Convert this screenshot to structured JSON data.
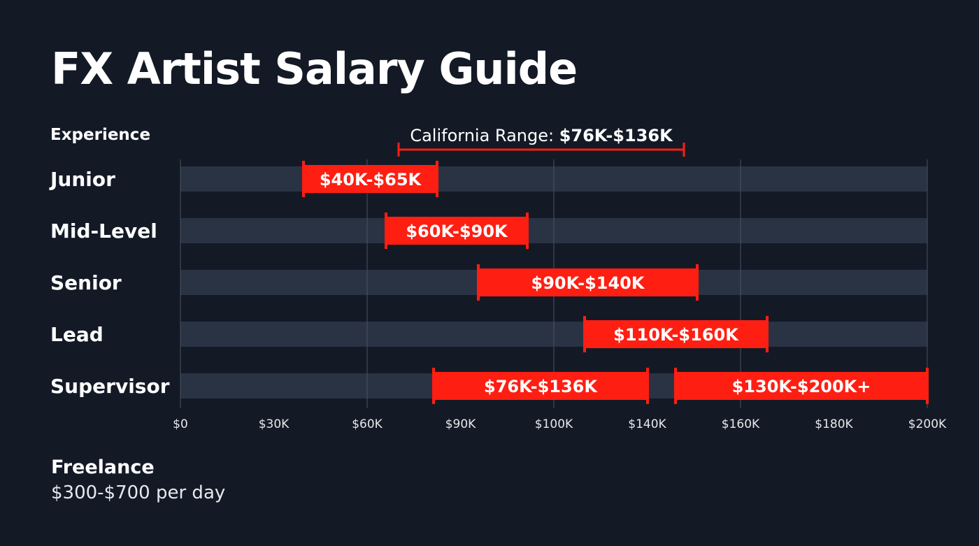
{
  "title": "FX Artist Salary Guide",
  "colors": {
    "background": "#131a26",
    "track": "#2a3344",
    "range_bar": "#ff1e12",
    "gridline": "#4a5262",
    "text": "#ffffff"
  },
  "chart_data": {
    "type": "range-bar",
    "row_header": "Experience",
    "categories": [
      "Junior",
      "Mid-Level",
      "Senior",
      "Lead",
      "Supervisor"
    ],
    "x_ticks": [
      "$0",
      "$30K",
      "$60K",
      "$90K",
      "$100K",
      "$140K",
      "$160K",
      "$180K",
      "$200K"
    ],
    "gridlines_at_ticks": [
      "$0",
      "$60K",
      "$100K",
      "$160K",
      "$200K"
    ],
    "bars": [
      {
        "category": "Junior",
        "label": "$40K-$65K",
        "low": 40000,
        "high": 65000
      },
      {
        "category": "Mid-Level",
        "label": "$60K-$90K",
        "low": 60000,
        "high": 90000
      },
      {
        "category": "Senior",
        "label": "$90K-$140K",
        "low": 90000,
        "high": 140000
      },
      {
        "category": "Lead",
        "label": "$110K-$160K",
        "low": 110000,
        "high": 160000
      },
      {
        "category": "Supervisor",
        "label": "$76K-$136K",
        "low": 76000,
        "high": 136000
      },
      {
        "category": "Supervisor",
        "label": "$130K-$200K+",
        "low": 130000,
        "high": 200000
      }
    ],
    "annotation": {
      "prefix": "California Range: ",
      "value": "$76K-$136K",
      "low": 76000,
      "high": 136000
    },
    "grid": true
  },
  "freelance": {
    "title": "Freelance",
    "rate": "$300-$700 per day"
  }
}
